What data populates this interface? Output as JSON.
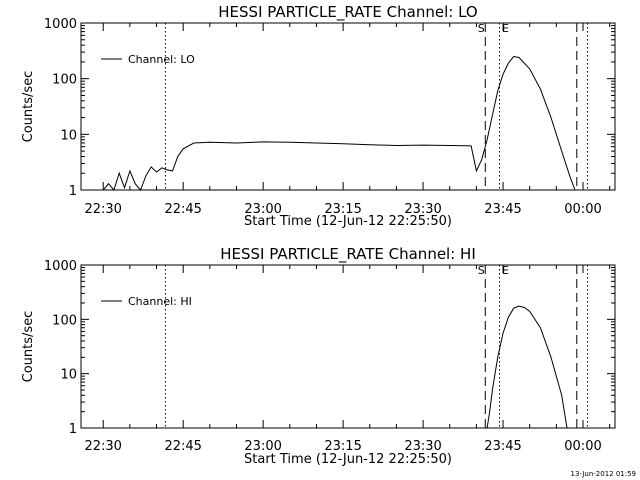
{
  "chart_data": [
    {
      "type": "line",
      "title": "HESSI PARTICLE_RATE Channel: LO",
      "xlabel": "Start Time (12-Jun-12 22:25:50)",
      "ylabel": "Counts/sec",
      "yscale": "log",
      "ylim": [
        1,
        1000
      ],
      "xlim": [
        "22:25:50",
        "00:06:00"
      ],
      "x_ticks": [
        "22:30",
        "22:45",
        "23:00",
        "23:15",
        "23:30",
        "23:45",
        "00:00"
      ],
      "y_ticks": [
        "1",
        "10",
        "100",
        "1000"
      ],
      "grid": false,
      "legend": {
        "position": "top-left",
        "entries": [
          "Channel: LO"
        ]
      },
      "markers": [
        {
          "time": "22:41:40",
          "style": "dotted",
          "label": ""
        },
        {
          "time": "23:41:40",
          "style": "dashed",
          "label": "S"
        },
        {
          "time": "23:44:20",
          "style": "dotted",
          "label": "E"
        },
        {
          "time": "23:58:50",
          "style": "dashed",
          "label": ""
        },
        {
          "time": "00:00:50",
          "style": "dotted",
          "label": ""
        }
      ],
      "series": [
        {
          "name": "Channel: LO",
          "x": [
            "22:26:00",
            "22:28:00",
            "22:30:00",
            "22:31:00",
            "22:32:00",
            "22:33:00",
            "22:34:00",
            "22:35:00",
            "22:36:00",
            "22:37:00",
            "22:38:00",
            "22:39:00",
            "22:40:00",
            "22:41:00",
            "22:42:00",
            "22:43:00",
            "22:44:00",
            "22:45:00",
            "22:47:00",
            "22:50:00",
            "22:55:00",
            "23:00:00",
            "23:05:00",
            "23:10:00",
            "23:15:00",
            "23:20:00",
            "23:25:00",
            "23:30:00",
            "23:35:00",
            "23:39:00",
            "23:40:00",
            "23:41:00",
            "23:42:00",
            "23:43:00",
            "23:44:00",
            "23:45:00",
            "23:46:00",
            "23:47:00",
            "23:48:00",
            "23:50:00",
            "23:52:00",
            "23:54:00",
            "23:56:00",
            "23:57:30",
            "23:58:30",
            "23:59:30",
            "00:00:30",
            "00:01:00"
          ],
          "y": [
            1,
            1,
            1,
            1.3,
            1,
            2,
            1.1,
            2.2,
            1.3,
            1,
            1.8,
            2.6,
            2.1,
            2.5,
            2.3,
            2.2,
            4,
            5.5,
            7,
            7.2,
            7,
            7.3,
            7.2,
            7,
            6.8,
            6.5,
            6.3,
            6.4,
            6.3,
            6.2,
            2.2,
            3.5,
            8,
            22,
            60,
            120,
            190,
            250,
            240,
            150,
            65,
            20,
            5,
            1.8,
            1,
            1,
            1,
            1
          ]
        }
      ]
    },
    {
      "type": "line",
      "title": "HESSI PARTICLE_RATE Channel: HI",
      "xlabel": "Start Time (12-Jun-12 22:25:50)",
      "ylabel": "Counts/sec",
      "yscale": "log",
      "ylim": [
        1,
        1000
      ],
      "xlim": [
        "22:25:50",
        "00:06:00"
      ],
      "x_ticks": [
        "22:30",
        "22:45",
        "23:00",
        "23:15",
        "23:30",
        "23:45",
        "00:00"
      ],
      "y_ticks": [
        "1",
        "10",
        "100",
        "1000"
      ],
      "grid": false,
      "legend": {
        "position": "top-left",
        "entries": [
          "Channel: HI"
        ]
      },
      "markers": [
        {
          "time": "22:41:40",
          "style": "dotted",
          "label": ""
        },
        {
          "time": "23:41:40",
          "style": "dashed",
          "label": "S"
        },
        {
          "time": "23:44:20",
          "style": "dotted",
          "label": "E"
        },
        {
          "time": "23:58:50",
          "style": "dashed",
          "label": ""
        },
        {
          "time": "00:00:50",
          "style": "dotted",
          "label": ""
        }
      ],
      "series": [
        {
          "name": "Channel: HI",
          "x": [
            "23:42:00",
            "23:42:30",
            "23:43:00",
            "23:44:00",
            "23:45:00",
            "23:46:00",
            "23:47:00",
            "23:48:00",
            "23:49:00",
            "23:50:00",
            "23:52:00",
            "23:54:00",
            "23:56:00",
            "23:57:00"
          ],
          "y": [
            1,
            2,
            5,
            20,
            55,
            110,
            160,
            175,
            165,
            140,
            70,
            20,
            4,
            1
          ]
        }
      ]
    }
  ],
  "footer": {
    "timestamp": "13-Jun-2012 01:59"
  }
}
